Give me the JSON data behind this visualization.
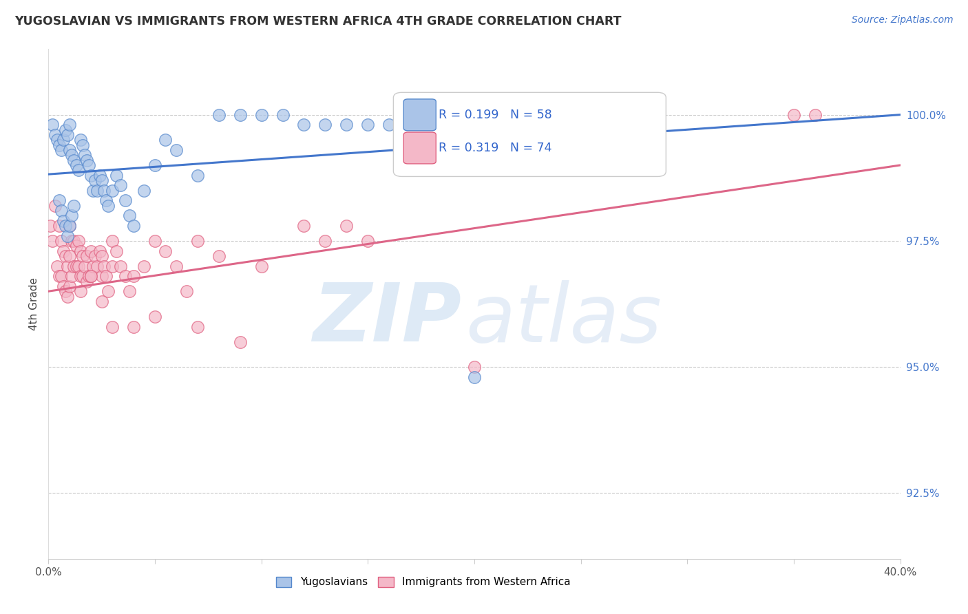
{
  "title": "YUGOSLAVIAN VS IMMIGRANTS FROM WESTERN AFRICA 4TH GRADE CORRELATION CHART",
  "source": "Source: ZipAtlas.com",
  "ylabel": "4th Grade",
  "ytick_values": [
    92.5,
    95.0,
    97.5,
    100.0
  ],
  "xlim": [
    0.0,
    40.0
  ],
  "ylim": [
    91.2,
    101.3
  ],
  "legend_blue_r": "R = 0.199",
  "legend_blue_n": "N = 58",
  "legend_pink_r": "R = 0.319",
  "legend_pink_n": "N = 74",
  "legend_blue_label": "Yugoslavians",
  "legend_pink_label": "Immigrants from Western Africa",
  "blue_color": "#aac4e8",
  "pink_color": "#f4b8c8",
  "blue_edge_color": "#5588cc",
  "pink_edge_color": "#e06080",
  "blue_line_color": "#4477cc",
  "pink_line_color": "#dd6688",
  "blue_line_x": [
    0.0,
    40.0
  ],
  "blue_line_y": [
    98.82,
    100.0
  ],
  "pink_line_x": [
    0.0,
    40.0
  ],
  "pink_line_y": [
    96.5,
    99.0
  ],
  "blue_scatter_x": [
    0.2,
    0.3,
    0.4,
    0.5,
    0.6,
    0.7,
    0.8,
    0.9,
    1.0,
    1.0,
    1.1,
    1.2,
    1.3,
    1.4,
    1.5,
    1.6,
    1.7,
    1.8,
    1.9,
    2.0,
    2.1,
    2.2,
    2.3,
    2.4,
    2.5,
    2.6,
    2.7,
    2.8,
    3.0,
    3.2,
    3.4,
    3.6,
    3.8,
    4.0,
    4.5,
    5.0,
    5.5,
    6.0,
    7.0,
    8.0,
    9.0,
    10.0,
    11.0,
    12.0,
    13.0,
    14.0,
    15.0,
    16.0,
    17.0,
    0.5,
    0.6,
    0.7,
    0.8,
    0.9,
    1.0,
    1.1,
    1.2,
    20.0
  ],
  "blue_scatter_y": [
    99.8,
    99.6,
    99.5,
    99.4,
    99.3,
    99.5,
    99.7,
    99.6,
    99.3,
    99.8,
    99.2,
    99.1,
    99.0,
    98.9,
    99.5,
    99.4,
    99.2,
    99.1,
    99.0,
    98.8,
    98.5,
    98.7,
    98.5,
    98.8,
    98.7,
    98.5,
    98.3,
    98.2,
    98.5,
    98.8,
    98.6,
    98.3,
    98.0,
    97.8,
    98.5,
    99.0,
    99.5,
    99.3,
    98.8,
    100.0,
    100.0,
    100.0,
    100.0,
    99.8,
    99.8,
    99.8,
    99.8,
    99.8,
    99.7,
    98.3,
    98.1,
    97.9,
    97.8,
    97.6,
    97.8,
    98.0,
    98.2,
    94.8
  ],
  "pink_scatter_x": [
    0.1,
    0.2,
    0.3,
    0.4,
    0.5,
    0.5,
    0.6,
    0.6,
    0.7,
    0.7,
    0.8,
    0.8,
    0.9,
    0.9,
    1.0,
    1.0,
    1.0,
    1.1,
    1.1,
    1.2,
    1.2,
    1.3,
    1.3,
    1.4,
    1.4,
    1.5,
    1.5,
    1.6,
    1.6,
    1.7,
    1.8,
    1.8,
    1.9,
    2.0,
    2.0,
    2.1,
    2.2,
    2.3,
    2.4,
    2.5,
    2.5,
    2.6,
    2.7,
    2.8,
    3.0,
    3.0,
    3.2,
    3.4,
    3.6,
    3.8,
    4.0,
    4.5,
    5.0,
    5.5,
    6.0,
    6.5,
    7.0,
    8.0,
    10.0,
    12.0,
    13.0,
    14.0,
    15.0,
    35.0,
    36.0,
    1.5,
    2.0,
    2.5,
    3.0,
    4.0,
    5.0,
    7.0,
    9.0,
    20.0
  ],
  "pink_scatter_y": [
    97.8,
    97.5,
    98.2,
    97.0,
    97.8,
    96.8,
    97.5,
    96.8,
    97.3,
    96.6,
    97.2,
    96.5,
    97.0,
    96.4,
    97.8,
    97.2,
    96.6,
    97.5,
    96.8,
    97.5,
    97.0,
    97.4,
    97.0,
    97.5,
    97.0,
    97.3,
    96.8,
    97.2,
    96.8,
    97.0,
    97.2,
    96.7,
    96.8,
    97.3,
    96.8,
    97.0,
    97.2,
    97.0,
    97.3,
    97.2,
    96.8,
    97.0,
    96.8,
    96.5,
    97.5,
    97.0,
    97.3,
    97.0,
    96.8,
    96.5,
    96.8,
    97.0,
    97.5,
    97.3,
    97.0,
    96.5,
    97.5,
    97.2,
    97.0,
    97.8,
    97.5,
    97.8,
    97.5,
    100.0,
    100.0,
    96.5,
    96.8,
    96.3,
    95.8,
    95.8,
    96.0,
    95.8,
    95.5,
    95.0
  ]
}
